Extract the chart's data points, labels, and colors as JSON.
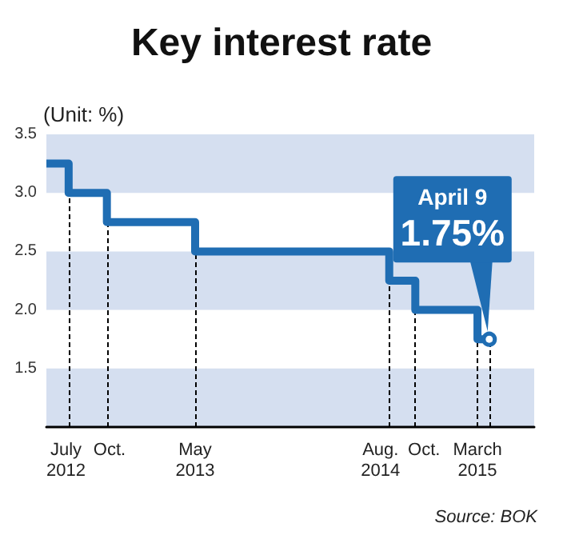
{
  "chart_data": {
    "type": "step",
    "title": "Key interest rate",
    "ylabel": "(Unit: %)",
    "x": [
      "2012-05-20",
      "2012-07-12",
      "2012-10-11",
      "2013-05-09",
      "2014-08-14",
      "2014-10-15",
      "2015-03-12",
      "2015-04-09"
    ],
    "series": [
      {
        "color": "#1f6db3",
        "values": [
          3.25,
          3.0,
          2.75,
          2.5,
          2.25,
          2.0,
          1.75,
          1.75
        ]
      }
    ],
    "xlim": [
      "2012-05-20",
      "2015-07-25"
    ],
    "xticks": [
      {
        "value": "2012-07-12",
        "label": "July\n2012"
      },
      {
        "value": "2012-10-11",
        "label": "Oct."
      },
      {
        "value": "2013-05-09",
        "label": "May\n2013"
      },
      {
        "value": "2014-08-14",
        "label": "Aug.\n2014"
      },
      {
        "value": "2014-10-15",
        "label": "Oct."
      },
      {
        "value": "2015-03-12",
        "label": "March\n2015"
      }
    ],
    "ylim": [
      1.0,
      3.5
    ],
    "yticks": [
      1.5,
      {
        "value": 2,
        "label": "2.0"
      },
      2.5,
      {
        "value": 3,
        "label": "3.0"
      },
      3.5
    ],
    "bands": [
      {
        "axis": "y",
        "from": 1.0,
        "to": 1.5,
        "color": "#d5dff0"
      },
      {
        "axis": "y",
        "from": 2.0,
        "to": 2.5,
        "color": "#d5dff0"
      },
      {
        "axis": "y",
        "from": 3.0,
        "to": 3.5,
        "color": "#d5dff0"
      }
    ],
    "ref_lines": [
      {
        "axis": "x",
        "value": "2012-07-12",
        "line_style": "dashed",
        "color": "#000000"
      },
      {
        "axis": "x",
        "value": "2012-10-11",
        "line_style": "dashed",
        "color": "#000000"
      },
      {
        "axis": "x",
        "value": "2013-05-09",
        "line_style": "dashed",
        "color": "#000000"
      },
      {
        "axis": "x",
        "value": "2014-08-14",
        "line_style": "dashed",
        "color": "#000000"
      },
      {
        "axis": "x",
        "value": "2014-10-15",
        "line_style": "dashed",
        "color": "#000000"
      },
      {
        "axis": "x",
        "value": "2015-03-12",
        "line_style": "dashed",
        "color": "#000000"
      },
      {
        "axis": "x",
        "value": "2015-04-09",
        "line_style": "dashed",
        "color": "#000000"
      }
    ],
    "annotations": [
      {
        "text": "April 9\n1.75%",
        "x": "2015-04-09",
        "y": 1.75
      },
      "Source: BOK"
    ],
    "grid": false,
    "marker": "none",
    "line_style": "solid"
  }
}
